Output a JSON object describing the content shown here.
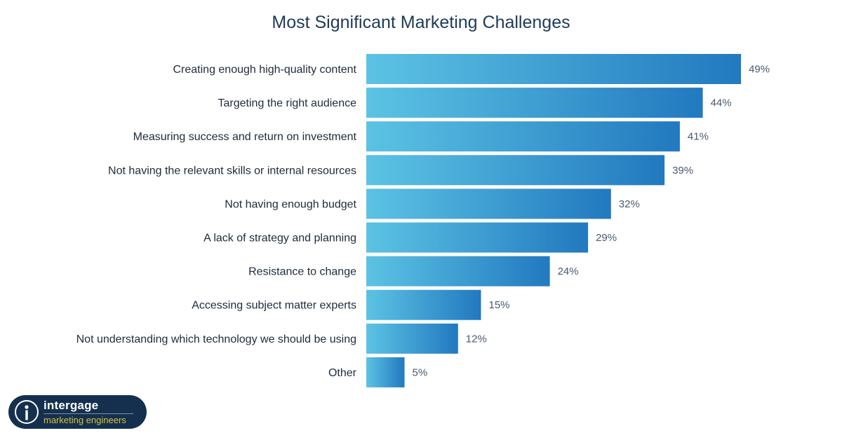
{
  "chart_data": {
    "type": "bar",
    "orientation": "horizontal",
    "title": "Most Significant Marketing Challenges",
    "categories": [
      "Creating enough high-quality content",
      "Targeting the right audience",
      "Measuring success and return on investment",
      "Not having the relevant skills or internal resources",
      "Not having enough budget",
      "A lack of strategy and planning",
      "Resistance to change",
      "Accessing subject matter experts",
      "Not understanding which technology we should be using",
      "Other"
    ],
    "values": [
      49,
      44,
      41,
      39,
      32,
      29,
      24,
      15,
      12,
      5
    ],
    "value_labels": [
      "49%",
      "44%",
      "41%",
      "39%",
      "32%",
      "29%",
      "24%",
      "15%",
      "12%",
      "5%"
    ],
    "unit": "%",
    "grid": false,
    "legend": "none",
    "colors": {
      "gradient_start": "#5cc3e4",
      "gradient_end": "#2279bf"
    }
  },
  "logo": {
    "name": "intergage",
    "tagline": "marketing engineers",
    "colors": {
      "background": "#15304f",
      "tagline": "#d4c236"
    }
  }
}
